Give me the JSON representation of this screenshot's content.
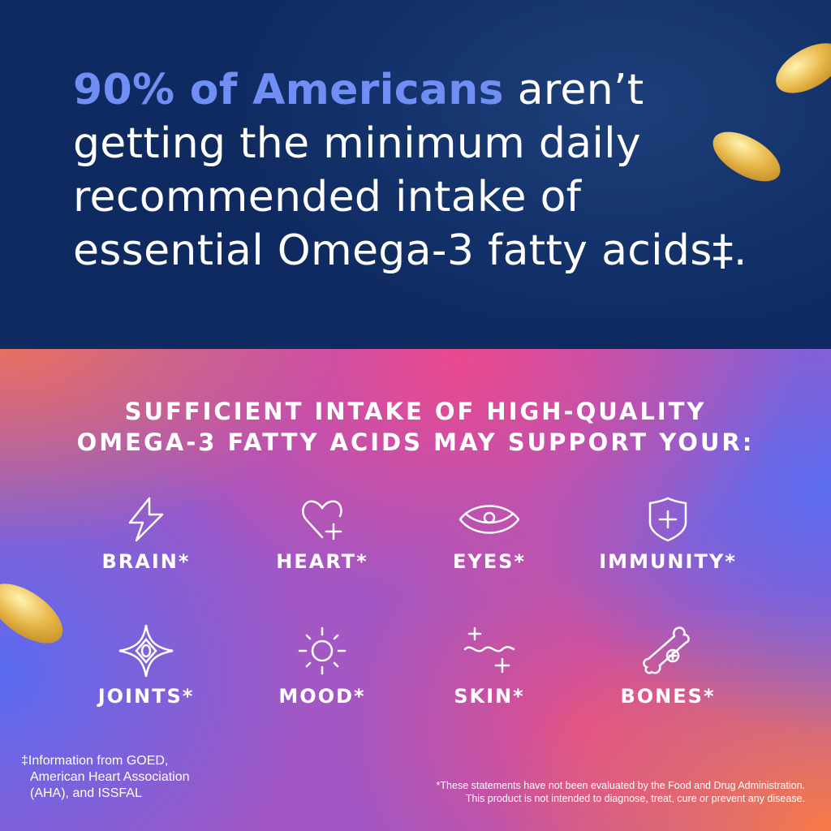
{
  "headline": {
    "highlight": "90% of Americans",
    "line1_rest": " aren’t",
    "line2": "getting the minimum daily",
    "line3": "recommended intake of",
    "line4": "essential Omega-3 fatty acids‡."
  },
  "subheading": {
    "line1": "SUFFICIENT INTAKE OF HIGH-QUALITY",
    "line2": "OMEGA-3 FATTY ACIDS MAY SUPPORT YOUR:"
  },
  "benefits": [
    {
      "label": "BRAIN*",
      "icon": "lightning-icon"
    },
    {
      "label": "HEART*",
      "icon": "heart-plus-icon"
    },
    {
      "label": "EYES*",
      "icon": "eye-icon"
    },
    {
      "label": "IMMUNITY*",
      "icon": "shield-plus-icon"
    },
    {
      "label": "JOINTS*",
      "icon": "star-joint-icon"
    },
    {
      "label": "MOOD*",
      "icon": "sun-icon"
    },
    {
      "label": "SKIN*",
      "icon": "sparkle-wave-icon"
    },
    {
      "label": "BONES*",
      "icon": "bone-plus-icon"
    }
  ],
  "footnote_source": {
    "line1": "‡Information from GOED,",
    "line2": "American Heart Association",
    "line3": "(AHA), and ISSFAL"
  },
  "disclaimer": {
    "line1": "*These statements have not been evaluated by the Food and Drug Administration.",
    "line2": "This product is not intended to diagnose, treat, cure or prevent any disease."
  },
  "colors": {
    "navy": "#123068",
    "highlight": "#6f8ff5",
    "capsule": "#e8b84a"
  }
}
